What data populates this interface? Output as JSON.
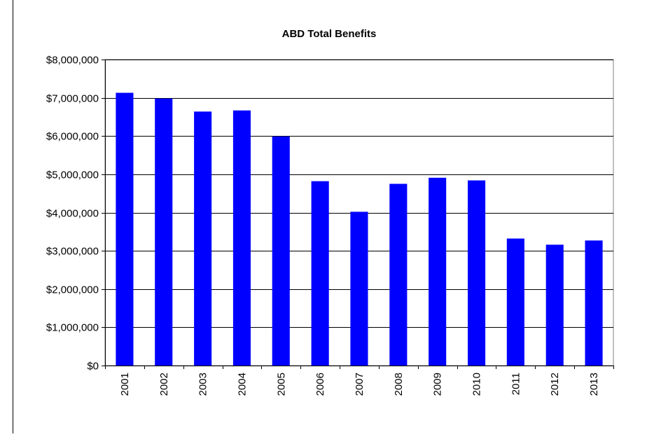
{
  "chart_data": {
    "type": "bar",
    "title": "ABD  Total Benefits",
    "xlabel": "",
    "ylabel": "",
    "categories": [
      "2001",
      "2002",
      "2003",
      "2004",
      "2005",
      "2006",
      "2007",
      "2008",
      "2009",
      "2010",
      "2011",
      "2012",
      "2013"
    ],
    "series": [
      {
        "values": [
          7130000,
          6980000,
          6640000,
          6670000,
          5990000,
          4820000,
          4020000,
          4750000,
          4910000,
          4840000,
          3320000,
          3160000,
          3270000
        ],
        "color": "#0000ff"
      }
    ],
    "ylim": [
      0,
      8000000
    ],
    "yticks": [
      0,
      1000000,
      2000000,
      3000000,
      4000000,
      5000000,
      6000000,
      7000000,
      8000000
    ],
    "ytick_labels": [
      "$0",
      "$1,000,000",
      "$2,000,000",
      "$3,000,000",
      "$4,000,000",
      "$5,000,000",
      "$6,000,000",
      "$7,000,000",
      "$8,000,000"
    ],
    "grid": true,
    "legend": "none",
    "x_tick_rotation": "vertical"
  }
}
